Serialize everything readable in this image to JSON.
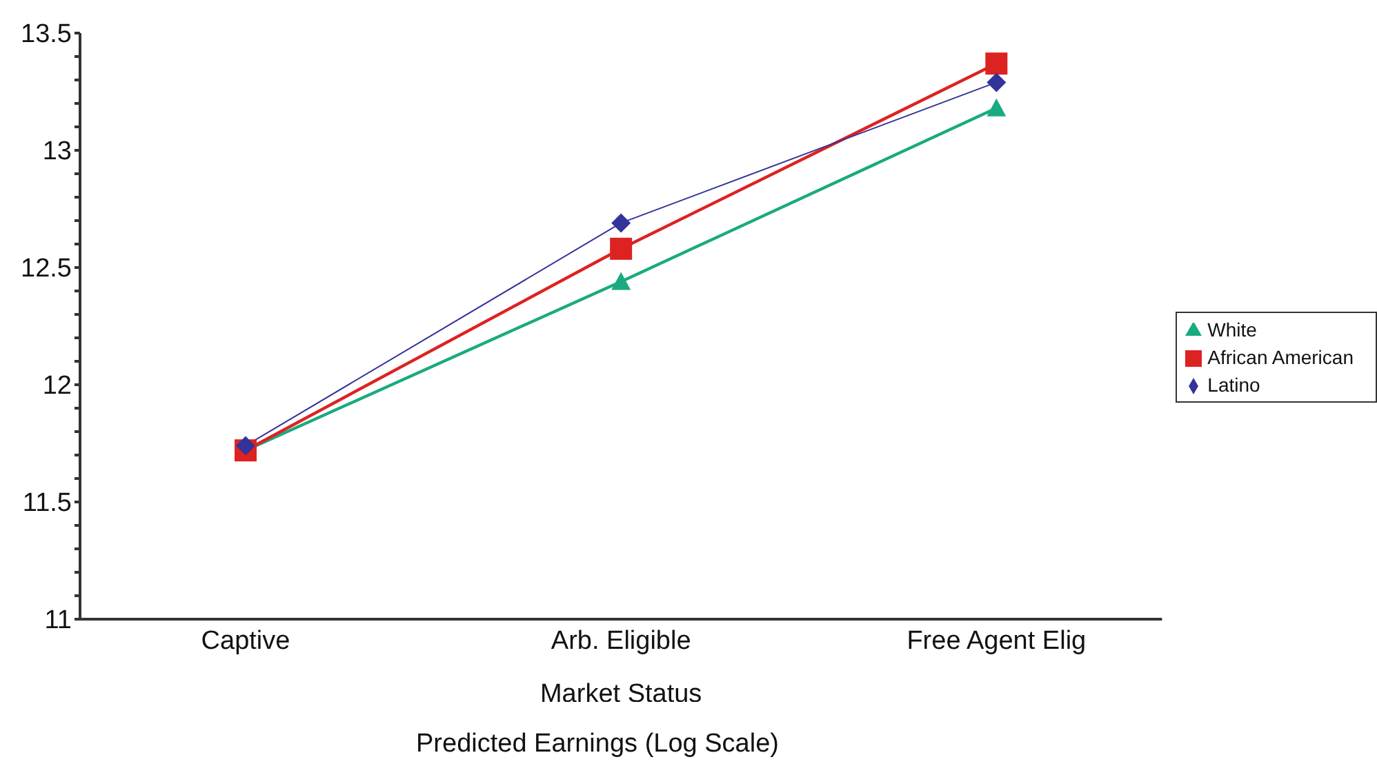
{
  "chart_data": {
    "type": "line",
    "title": "Predicted Earnings (Log Scale)",
    "xlabel": "Market Status",
    "categories": [
      "Captive",
      "Arb. Eligible",
      "Free Agent Elig"
    ],
    "series": [
      {
        "name": "Latino",
        "color": "#333399",
        "marker": "diamond",
        "values": [
          11.74,
          12.69,
          13.29
        ]
      },
      {
        "name": "African American",
        "color": "#dd2222",
        "marker": "square",
        "values": [
          11.72,
          12.58,
          13.37
        ]
      },
      {
        "name": "White",
        "color": "#1aaa80",
        "marker": "triangle",
        "values": [
          11.72,
          12.44,
          13.18
        ]
      }
    ],
    "ylim": [
      11,
      13.5
    ],
    "yticks": [
      11,
      {
        "value": 11.1,
        "label": null
      },
      {
        "value": 11.2,
        "label": null
      },
      {
        "value": 11.3,
        "label": null
      },
      {
        "value": 11.4,
        "label": null
      },
      11.5,
      {
        "value": 11.6,
        "label": null
      },
      {
        "value": 11.7,
        "label": null
      },
      {
        "value": 11.8,
        "label": null
      },
      {
        "value": 11.9,
        "label": null
      },
      12,
      {
        "value": 12.1,
        "label": null
      },
      {
        "value": 12.2,
        "label": null
      },
      {
        "value": 12.3,
        "label": null
      },
      {
        "value": 12.4,
        "label": null
      },
      12.5,
      {
        "value": 12.6,
        "label": null
      },
      {
        "value": 12.7,
        "label": null
      },
      {
        "value": 12.8,
        "label": null
      },
      {
        "value": 12.9,
        "label": null
      },
      13,
      {
        "value": 13.1,
        "label": null
      },
      {
        "value": 13.2,
        "label": null
      },
      {
        "value": 13.3,
        "label": null
      },
      {
        "value": 13.4,
        "label": null
      },
      13.5
    ],
    "grid": false,
    "legend": "right",
    "line_style": "solid"
  }
}
